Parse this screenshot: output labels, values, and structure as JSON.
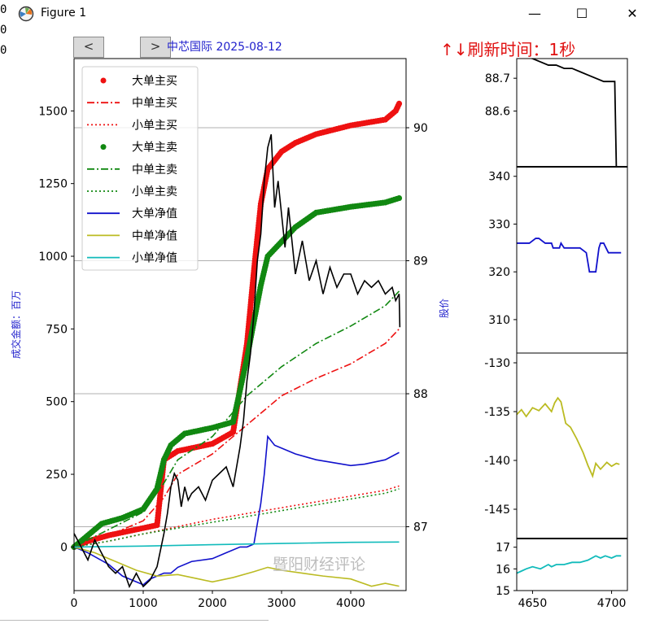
{
  "window": {
    "title": "Figure 1",
    "minimize": "—",
    "maximize": "☐",
    "close": "✕"
  },
  "side_strip": [
    "0",
    "0",
    "0"
  ],
  "nav": {
    "prev": "<",
    "next": ">"
  },
  "figure_title": "中芯国际  2025-08-12",
  "refresh_text": "↑↓刷新时间：1秒",
  "watermark": "暨阳财经评论",
  "colors": {
    "red": "#ee1111",
    "green": "#118811",
    "blue": "#1111cc",
    "olive": "#bbbb22",
    "cyan": "#11bbbb",
    "black": "#000000",
    "title_blue": "#1f1fcc"
  },
  "chart_data": [
    {
      "type": "line",
      "xlim": [
        0,
        4800
      ],
      "ylim": [
        -150,
        1680
      ],
      "y2lim": [
        86.52,
        90.52
      ],
      "xticks": [
        0,
        1000,
        2000,
        3000,
        4000
      ],
      "yticks": [
        0,
        250,
        500,
        750,
        1000,
        1250,
        1500
      ],
      "y2ticks": [
        87,
        88,
        89,
        90
      ],
      "ylabel": "成交金额：百万",
      "y2label": "股价",
      "legend_position": "upper-left",
      "legend": [
        "大单主买",
        "中单主买",
        "小单主买",
        "大单主卖",
        "中单主卖",
        "小单主卖",
        "大单净值",
        "中单净值",
        "小单净值"
      ],
      "series": [
        {
          "name": "大单主买",
          "color": "#ee1111",
          "style": "dots",
          "axis": "left",
          "x": [
            0,
            200,
            500,
            800,
            1200,
            1300,
            1500,
            1800,
            2000,
            2300,
            2500,
            2600,
            2700,
            2800,
            3000,
            3200,
            3500,
            4000,
            4500,
            4650,
            4700
          ],
          "y": [
            0,
            20,
            40,
            55,
            75,
            300,
            330,
            345,
            355,
            395,
            700,
            950,
            1180,
            1300,
            1360,
            1390,
            1420,
            1450,
            1470,
            1500,
            1525
          ]
        },
        {
          "name": "中单主买",
          "color": "#ee1111",
          "style": "dashdot",
          "axis": "left",
          "x": [
            0,
            500,
            1000,
            1300,
            1500,
            2000,
            2500,
            3000,
            3500,
            4000,
            4500,
            4700
          ],
          "y": [
            0,
            40,
            90,
            170,
            250,
            320,
            420,
            520,
            580,
            630,
            700,
            750
          ]
        },
        {
          "name": "小单主买",
          "color": "#ee1111",
          "style": "dotted",
          "axis": "left",
          "x": [
            0,
            500,
            1000,
            1500,
            2000,
            2500,
            3000,
            3500,
            4000,
            4500,
            4700
          ],
          "y": [
            0,
            20,
            45,
            70,
            95,
            115,
            135,
            155,
            175,
            195,
            210
          ]
        },
        {
          "name": "大单主卖",
          "color": "#118811",
          "style": "dots",
          "axis": "left",
          "x": [
            0,
            200,
            400,
            700,
            1000,
            1200,
            1300,
            1400,
            1600,
            1800,
            2000,
            2300,
            2500,
            2700,
            2800,
            3000,
            3200,
            3500,
            4000,
            4500,
            4700
          ],
          "y": [
            0,
            40,
            80,
            100,
            130,
            200,
            300,
            350,
            390,
            400,
            410,
            430,
            650,
            900,
            1000,
            1050,
            1100,
            1150,
            1170,
            1185,
            1200
          ]
        },
        {
          "name": "中单主卖",
          "color": "#118811",
          "style": "dashdot",
          "axis": "left",
          "x": [
            0,
            500,
            1000,
            1300,
            1500,
            2000,
            2500,
            3000,
            3500,
            4000,
            4500,
            4700
          ],
          "y": [
            0,
            60,
            120,
            220,
            300,
            380,
            520,
            620,
            700,
            760,
            830,
            880
          ]
        },
        {
          "name": "小单主卖",
          "color": "#118811",
          "style": "dotted",
          "axis": "left",
          "x": [
            0,
            500,
            1000,
            1500,
            2000,
            2500,
            3000,
            3500,
            4000,
            4500,
            4700
          ],
          "y": [
            0,
            20,
            45,
            65,
            85,
            105,
            125,
            145,
            165,
            185,
            200
          ]
        },
        {
          "name": "大单净值",
          "color": "#1111cc",
          "style": "solid",
          "axis": "left",
          "x": [
            0,
            200,
            500,
            700,
            900,
            1000,
            1100,
            1300,
            1400,
            1500,
            1700,
            2000,
            2200,
            2400,
            2500,
            2600,
            2700,
            2750,
            2800,
            2900,
            3000,
            3200,
            3500,
            4000,
            4200,
            4500,
            4700
          ],
          "y": [
            0,
            -20,
            -60,
            -100,
            -120,
            -130,
            -110,
            -90,
            -90,
            -70,
            -50,
            -40,
            -20,
            0,
            0,
            10,
            150,
            250,
            380,
            350,
            340,
            320,
            300,
            280,
            285,
            300,
            325
          ]
        },
        {
          "name": "中单净值",
          "color": "#bbbb22",
          "style": "solid",
          "axis": "left",
          "x": [
            0,
            300,
            600,
            900,
            1200,
            1500,
            1800,
            2000,
            2300,
            2600,
            2800,
            3000,
            3300,
            3600,
            4000,
            4300,
            4500,
            4700
          ],
          "y": [
            0,
            -20,
            -50,
            -80,
            -100,
            -95,
            -110,
            -120,
            -105,
            -85,
            -70,
            -80,
            -90,
            -100,
            -110,
            -135,
            -125,
            -135
          ]
        },
        {
          "name": "小单净值",
          "color": "#11bbbb",
          "style": "solid",
          "axis": "left",
          "x": [
            0,
            1000,
            2000,
            3000,
            4000,
            4700
          ],
          "y": [
            0,
            3,
            8,
            12,
            16,
            17
          ]
        },
        {
          "name": "股价",
          "color": "#000000",
          "style": "solid",
          "axis": "right",
          "x": [
            0,
            100,
            200,
            300,
            400,
            500,
            600,
            700,
            800,
            900,
            1000,
            1100,
            1200,
            1300,
            1350,
            1400,
            1450,
            1500,
            1550,
            1600,
            1650,
            1700,
            1800,
            1900,
            2000,
            2100,
            2200,
            2300,
            2400,
            2450,
            2500,
            2550,
            2600,
            2650,
            2700,
            2750,
            2800,
            2850,
            2900,
            2950,
            3000,
            3050,
            3100,
            3200,
            3300,
            3400,
            3500,
            3600,
            3700,
            3800,
            3900,
            4000,
            4100,
            4200,
            4300,
            4400,
            4500,
            4600,
            4650,
            4700,
            4710
          ],
          "y": [
            86.95,
            86.85,
            86.75,
            86.9,
            86.8,
            86.7,
            86.65,
            86.7,
            86.55,
            86.65,
            86.55,
            86.6,
            86.7,
            86.95,
            87.1,
            87.3,
            87.4,
            87.35,
            87.15,
            87.3,
            87.2,
            87.25,
            87.3,
            87.2,
            87.35,
            87.4,
            87.45,
            87.3,
            87.6,
            87.8,
            88.1,
            88.3,
            88.6,
            89.0,
            89.2,
            89.6,
            89.85,
            89.95,
            89.4,
            89.6,
            89.35,
            89.1,
            89.4,
            88.9,
            89.15,
            88.85,
            89.0,
            88.75,
            88.95,
            88.8,
            88.9,
            88.9,
            88.75,
            88.85,
            88.8,
            88.85,
            88.75,
            88.8,
            88.7,
            88.75,
            88.5
          ]
        }
      ]
    },
    {
      "type": "line",
      "xlim": [
        4640,
        4710
      ],
      "ylim": [
        88.43,
        88.76
      ],
      "yticks": [
        88.6,
        88.7
      ],
      "series": [
        {
          "name": "股价",
          "color": "#000000",
          "x": [
            4640,
            4650,
            4655,
            4660,
            4665,
            4670,
            4675,
            4680,
            4685,
            4690,
            4695,
            4700,
            4702,
            4703,
            4705,
            4708
          ],
          "y": [
            88.77,
            88.76,
            88.75,
            88.74,
            88.74,
            88.73,
            88.73,
            88.72,
            88.71,
            88.7,
            88.69,
            88.69,
            88.69,
            88.43,
            88.43,
            88.43
          ]
        }
      ]
    },
    {
      "type": "line",
      "xlim": [
        4640,
        4710
      ],
      "ylim": [
        303,
        342
      ],
      "yticks": [
        310,
        320,
        330,
        340
      ],
      "series": [
        {
          "name": "大单净值",
          "color": "#1111cc",
          "x": [
            4640,
            4648,
            4652,
            4654,
            4658,
            4662,
            4663,
            4667,
            4668,
            4670,
            4675,
            4680,
            4684,
            4686,
            4690,
            4692,
            4693,
            4695,
            4698,
            4700,
            4703,
            4706
          ],
          "y": [
            326,
            326,
            327,
            327,
            326,
            326,
            325,
            325,
            326,
            325,
            325,
            325,
            324,
            320,
            320,
            325,
            326,
            326,
            324,
            324,
            324,
            324
          ]
        }
      ]
    },
    {
      "type": "line",
      "xlim": [
        4640,
        4710
      ],
      "ylim": [
        -148,
        -129
      ],
      "yticks": [
        -145,
        -140,
        -135,
        -130
      ],
      "series": [
        {
          "name": "中单净值",
          "color": "#bbbb22",
          "x": [
            4640,
            4643,
            4646,
            4650,
            4654,
            4658,
            4662,
            4664,
            4666,
            4668,
            4671,
            4674,
            4678,
            4682,
            4685,
            4688,
            4690,
            4693,
            4697,
            4700,
            4703,
            4705
          ],
          "y": [
            -135.3,
            -134.8,
            -135.5,
            -134.6,
            -134.9,
            -134.2,
            -135.0,
            -134.1,
            -133.6,
            -134.0,
            -136.2,
            -136.6,
            -137.8,
            -139.2,
            -140.5,
            -141.6,
            -140.3,
            -140.9,
            -140.2,
            -140.6,
            -140.3,
            -140.4
          ]
        }
      ]
    },
    {
      "type": "line",
      "xlim": [
        4640,
        4710
      ],
      "ylim": [
        15,
        17.4
      ],
      "yticks": [
        15,
        16,
        17
      ],
      "xticks": [
        4650,
        4700
      ],
      "series": [
        {
          "name": "小单净值",
          "color": "#11bbbb",
          "x": [
            4640,
            4643,
            4646,
            4650,
            4655,
            4660,
            4662,
            4665,
            4670,
            4675,
            4680,
            4685,
            4690,
            4693,
            4696,
            4700,
            4703,
            4706
          ],
          "y": [
            15.8,
            15.9,
            16.0,
            16.1,
            16.0,
            16.2,
            16.1,
            16.2,
            16.2,
            16.3,
            16.3,
            16.4,
            16.6,
            16.5,
            16.6,
            16.5,
            16.6,
            16.6
          ]
        }
      ]
    }
  ]
}
